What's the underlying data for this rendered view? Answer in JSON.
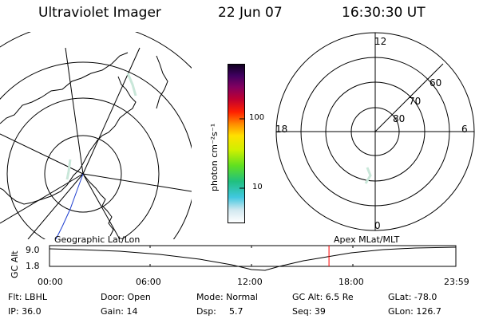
{
  "header": {
    "title": "Ultraviolet Imager",
    "date": "22 Jun 07",
    "time": "16:30:30 UT"
  },
  "apex_grid": {
    "mlt_labels": [
      "12",
      "18",
      "6",
      "0"
    ],
    "mlat_labels": [
      "60",
      "70",
      "80"
    ]
  },
  "colorbar": {
    "unit": "photon cm⁻²s⁻¹",
    "ticks": [
      "100",
      "10"
    ]
  },
  "timeline": {
    "left_label": "Geographic Lat/Lon",
    "right_label": "Apex MLat/MLT",
    "axis_label": "GC Alt",
    "alt_ticks": [
      "9.0",
      "1.8"
    ],
    "time_ticks": [
      "00:00",
      "06:00",
      "12:00",
      "18:00",
      "23:59"
    ],
    "current_time_fraction": 0.6878
  },
  "info": {
    "filter": "Flt: LBHL",
    "door": "Door: Open",
    "mode": "Mode: Normal",
    "gc_alt": "GC Alt: 6.5 Re",
    "glat": "GLat: -78.0",
    "ip": "IP: 36.0",
    "gain": "Gain: 14",
    "dsp_label": "Dsp:",
    "dsp_value": "5.7",
    "seq": "Seq: 39",
    "glon": "GLon: 126.7"
  },
  "colors": {
    "coastline": "#000000",
    "current_time_marker": "#ff0000",
    "track_blue": "#1f3fd0",
    "faint_emission": "#c9e7d9"
  }
}
